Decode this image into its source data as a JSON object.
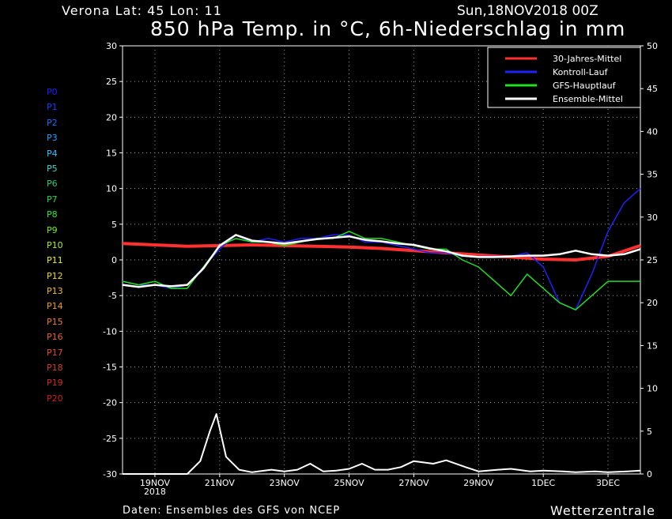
{
  "header": {
    "location": "Verona   Lat: 45 Lon: 11",
    "run": "Sun,18NOV2018 00Z",
    "title": "850 hPa Temp. in °C, 6h-Niederschlag in mm"
  },
  "footer": {
    "source": "Daten: Ensembles des GFS von NCEP",
    "brand": "Wetterzentrale"
  },
  "members": [
    {
      "label": "P0",
      "color": "#2020ff"
    },
    {
      "label": "P1",
      "color": "#1c3dff"
    },
    {
      "label": "P2",
      "color": "#1a6cff"
    },
    {
      "label": "P3",
      "color": "#1ea0ff"
    },
    {
      "label": "P4",
      "color": "#26c4ff"
    },
    {
      "label": "P5",
      "color": "#3cd8d0"
    },
    {
      "label": "P6",
      "color": "#2ccc70"
    },
    {
      "label": "P7",
      "color": "#20d850"
    },
    {
      "label": "P8",
      "color": "#30e830"
    },
    {
      "label": "P9",
      "color": "#70f020"
    },
    {
      "label": "P10",
      "color": "#b0f020"
    },
    {
      "label": "P11",
      "color": "#e8f020"
    },
    {
      "label": "P12",
      "color": "#f0d828"
    },
    {
      "label": "P13",
      "color": "#f0b830"
    },
    {
      "label": "P14",
      "color": "#f09830"
    },
    {
      "label": "P15",
      "color": "#f07830"
    },
    {
      "label": "P16",
      "color": "#e86030"
    },
    {
      "label": "P17",
      "color": "#e04c28"
    },
    {
      "label": "P18",
      "color": "#d83c20"
    },
    {
      "label": "P19",
      "color": "#d02c1c"
    },
    {
      "label": "P20",
      "color": "#c82018"
    }
  ],
  "chart_data": {
    "type": "line",
    "x_unit": "days after 18NOV2018 00Z",
    "x_range": [
      0,
      16
    ],
    "x_ticks": [
      {
        "x": 1,
        "label": "19NOV",
        "sub": "2018"
      },
      {
        "x": 3,
        "label": "21NOV"
      },
      {
        "x": 5,
        "label": "23NOV"
      },
      {
        "x": 7,
        "label": "25NOV"
      },
      {
        "x": 9,
        "label": "27NOV"
      },
      {
        "x": 11,
        "label": "29NOV"
      },
      {
        "x": 13,
        "label": "1DEC"
      },
      {
        "x": 15,
        "label": "3DEC"
      }
    ],
    "y_left": {
      "range": [
        -30,
        30
      ],
      "ticks": [
        -30,
        -25,
        -20,
        -15,
        -10,
        -5,
        0,
        5,
        10,
        15,
        20,
        25,
        30
      ],
      "label": "850 hPa Temp. (°C)"
    },
    "y_right": {
      "range": [
        0,
        50
      ],
      "ticks": [
        0,
        5,
        10,
        15,
        20,
        25,
        30,
        35,
        40,
        45,
        50
      ],
      "label": "6h-Niederschlag (mm)"
    },
    "grid": true,
    "legend_position": "top-right",
    "legend": [
      {
        "label": "30-Jahres-Mittel",
        "color": "#ff3030"
      },
      {
        "label": "Kontroll-Lauf",
        "color": "#2020ff"
      },
      {
        "label": "GFS-Hauptlauf",
        "color": "#20e020"
      },
      {
        "label": "Ensemble-Mittel",
        "color": "#ffffff"
      }
    ],
    "series": [
      {
        "name": "30-Jahres-Mittel",
        "color": "#ff3030",
        "axis": "left",
        "x": [
          0,
          1,
          2,
          3,
          4,
          5,
          6,
          7,
          8,
          9,
          10,
          11,
          12,
          13,
          14,
          15,
          16
        ],
        "y": [
          2.3,
          2.1,
          1.9,
          2.0,
          2.1,
          2.0,
          1.9,
          1.8,
          1.6,
          1.3,
          1.0,
          0.7,
          0.4,
          0.1,
          0.0,
          0.5,
          2.0
        ]
      },
      {
        "name": "Kontroll-Lauf",
        "color": "#2020ff",
        "axis": "left",
        "x": [
          0,
          0.5,
          1,
          1.5,
          2,
          2.5,
          3,
          3.5,
          4,
          4.5,
          5,
          5.5,
          6,
          6.5,
          7,
          7.5,
          8,
          8.5,
          9,
          9.5,
          10,
          10.5,
          11,
          11.5,
          12,
          12.5,
          13,
          13.5,
          14,
          14.5,
          15,
          15.5,
          16
        ],
        "y": [
          -3,
          -3.5,
          -3.5,
          -4,
          -3.5,
          -1,
          1.5,
          3.5,
          2.5,
          3,
          2.5,
          3,
          3,
          3.5,
          3.5,
          2.5,
          2.5,
          2,
          1.5,
          1,
          1,
          0.5,
          0.5,
          0.5,
          0.5,
          1,
          -1,
          -6,
          -7,
          -2,
          4,
          8,
          10
        ]
      },
      {
        "name": "GFS-Hauptlauf",
        "color": "#20e020",
        "axis": "left",
        "x": [
          0,
          0.5,
          1,
          1.5,
          2,
          2.5,
          3,
          3.5,
          4,
          4.5,
          5,
          5.5,
          6,
          6.5,
          7,
          7.5,
          8,
          8.5,
          9,
          9.5,
          10,
          10.5,
          11,
          11.5,
          12,
          12.5,
          13,
          13.5,
          14,
          14.5,
          15,
          15.5,
          16
        ],
        "y": [
          -3,
          -3.5,
          -3,
          -4,
          -4,
          -1,
          2,
          3,
          2.5,
          2.5,
          2,
          2.5,
          3,
          3,
          4,
          3,
          3,
          2.5,
          2,
          1.5,
          1.5,
          0,
          -1,
          -3,
          -5,
          -2,
          -4,
          -6,
          -7,
          -5,
          -3,
          -3,
          -3
        ]
      },
      {
        "name": "Ensemble-Mittel",
        "color": "#ffffff",
        "axis": "left",
        "x": [
          0,
          0.5,
          1,
          1.5,
          2,
          2.5,
          3,
          3.5,
          4,
          4.5,
          5,
          5.5,
          6,
          6.5,
          7,
          7.5,
          8,
          8.5,
          9,
          9.5,
          10,
          10.5,
          11,
          11.5,
          12,
          12.5,
          13,
          13.5,
          14,
          14.5,
          15,
          15.5,
          16
        ],
        "y": [
          -3.5,
          -3.8,
          -3.5,
          -3.7,
          -3.5,
          -1.2,
          2,
          3.5,
          2.7,
          2.5,
          2.3,
          2.6,
          2.9,
          3.1,
          3.3,
          2.8,
          2.6,
          2.3,
          2.1,
          1.6,
          1.2,
          0.6,
          0.4,
          0.4,
          0.5,
          0.6,
          0.6,
          0.8,
          1.3,
          0.8,
          0.6,
          0.8,
          1.5
        ]
      },
      {
        "name": "Ensemble-Mittel Niederschlag",
        "color": "#ffffff",
        "axis": "right",
        "x": [
          0,
          1,
          1.5,
          2,
          2.4,
          2.7,
          2.9,
          3.2,
          3.6,
          4,
          4.6,
          5,
          5.4,
          5.8,
          6.2,
          6.6,
          7,
          7.4,
          7.8,
          8.2,
          8.6,
          9,
          9.6,
          10,
          10.6,
          11,
          11.6,
          12,
          12.6,
          13,
          13.6,
          14,
          14.6,
          15,
          15.6,
          16
        ],
        "y": [
          0,
          0,
          0,
          0,
          1.5,
          5,
          7,
          2,
          0.5,
          0.2,
          0.5,
          0.3,
          0.5,
          1.2,
          0.3,
          0.4,
          0.6,
          1.2,
          0.5,
          0.5,
          0.8,
          1.5,
          1.2,
          1.6,
          0.8,
          0.3,
          0.5,
          0.6,
          0.3,
          0.4,
          0.3,
          0.2,
          0.3,
          0.2,
          0.3,
          0.4
        ]
      }
    ]
  }
}
